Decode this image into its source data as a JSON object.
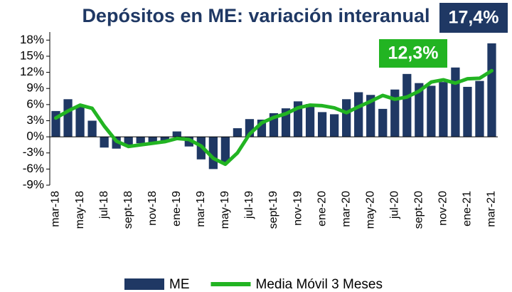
{
  "chart_data": {
    "type": "bar",
    "title": "Depósitos en ME: variación interanual",
    "categories": [
      "mar-18",
      null,
      "may-18",
      null,
      "jul-18",
      null,
      "sept-18",
      null,
      "nov-18",
      null,
      "ene-19",
      null,
      "mar-19",
      null,
      "may-19",
      null,
      "jul-19",
      null,
      "sept-19",
      null,
      "nov-19",
      null,
      "ene-20",
      null,
      "mar-20",
      null,
      "may-20",
      null,
      "jul-20",
      null,
      "sept-20",
      null,
      "nov-20",
      null,
      "ene-21",
      null,
      "mar-21"
    ],
    "series": [
      {
        "name": "ME",
        "type": "bar",
        "color": "#1f3864",
        "values": [
          4.8,
          7.0,
          5.8,
          3.0,
          -2.0,
          -2.2,
          -1.5,
          -1.2,
          -1.0,
          -0.7,
          1.0,
          -1.8,
          -4.2,
          -6.0,
          -4.8,
          1.6,
          3.3,
          3.2,
          4.4,
          5.3,
          6.6,
          6.1,
          4.6,
          4.2,
          7.0,
          8.3,
          7.8,
          5.2,
          8.8,
          11.7,
          10.0,
          9.5,
          10.2,
          12.9,
          9.3,
          10.4,
          17.4
        ]
      },
      {
        "name": "Media Móvil 3 Meses",
        "type": "line",
        "color": "#22b422",
        "values": [
          3.5,
          4.8,
          5.9,
          5.3,
          2.0,
          -0.8,
          -1.8,
          -1.5,
          -1.2,
          -0.9,
          -0.3,
          -0.5,
          -1.7,
          -4.0,
          -5.1,
          -3.0,
          0.5,
          2.6,
          3.6,
          4.3,
          5.4,
          5.9,
          5.8,
          5.4,
          4.5,
          5.6,
          6.6,
          7.7,
          7.0,
          7.4,
          8.5,
          10.2,
          10.6,
          10.0,
          10.8,
          10.9,
          12.3
        ]
      }
    ],
    "annotations": [
      {
        "text": "17,4%",
        "color": "#1f3864"
      },
      {
        "text": "12,3%",
        "color": "#22b422"
      }
    ],
    "ylim": [
      -9,
      19.5
    ],
    "yticks": [
      {
        "value": -9,
        "label": "-9%"
      },
      {
        "value": -6,
        "label": "-6%"
      },
      {
        "value": -3,
        "label": "-3%"
      },
      {
        "value": 0,
        "label": "0%"
      },
      {
        "value": 3,
        "label": "3%"
      },
      {
        "value": 6,
        "label": "6%"
      },
      {
        "value": 9,
        "label": "9%"
      },
      {
        "value": 12,
        "label": "12%"
      },
      {
        "value": 15,
        "label": "15%"
      },
      {
        "value": 18,
        "label": "18%"
      }
    ],
    "grid": false
  }
}
